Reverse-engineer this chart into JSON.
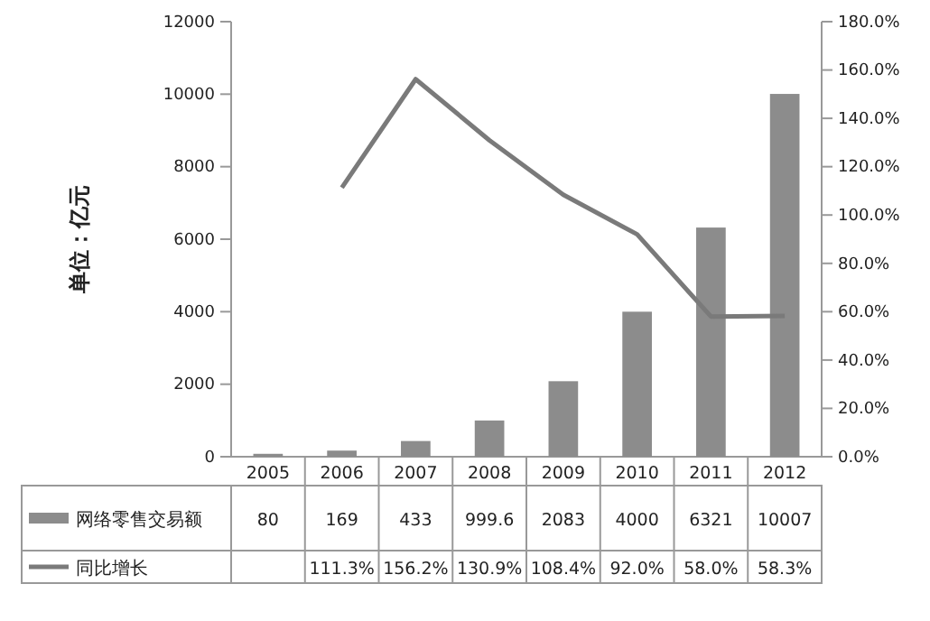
{
  "chart_data": {
    "type": "bar",
    "ylabel": "单位：亿元",
    "categories": [
      "2005",
      "2006",
      "2007",
      "2008",
      "2009",
      "2010",
      "2011",
      "2012"
    ],
    "series": [
      {
        "name": "网络零售交易额",
        "color": "#8c8c8c",
        "values": [
          80,
          169,
          433,
          999.6,
          2083,
          4000,
          6321,
          10007
        ]
      },
      {
        "name": "同比增长",
        "type": "line",
        "axis": "y2",
        "color": "#7a7a7a",
        "marker": "none",
        "line_style": "solid",
        "values": [
          null,
          111.3,
          156.2,
          130.9,
          108.4,
          92.0,
          58.0,
          58.3
        ],
        "value_labels": [
          null,
          "111.3%",
          "156.2%",
          "130.9%",
          "108.4%",
          "92.0%",
          "58.0%",
          "58.3%"
        ]
      }
    ],
    "ylim": [
      0,
      12000
    ],
    "yticks": [
      0,
      2000,
      4000,
      6000,
      8000,
      10000,
      12000
    ],
    "y2lim": [
      0,
      180
    ],
    "y2ticks": [
      {
        "value": 0,
        "label": "0.0%"
      },
      {
        "value": 20,
        "label": "20.0%"
      },
      {
        "value": 40,
        "label": "40.0%"
      },
      {
        "value": 60,
        "label": "60.0%"
      },
      {
        "value": 80,
        "label": "80.0%"
      },
      {
        "value": 100,
        "label": "100.0%"
      },
      {
        "value": 120,
        "label": "120.0%"
      },
      {
        "value": 140,
        "label": "140.0%"
      },
      {
        "value": 160,
        "label": "160.0%"
      },
      {
        "value": 180,
        "label": "180.0%"
      }
    ],
    "data_labels": true,
    "grid": false,
    "legend": "bottom"
  }
}
